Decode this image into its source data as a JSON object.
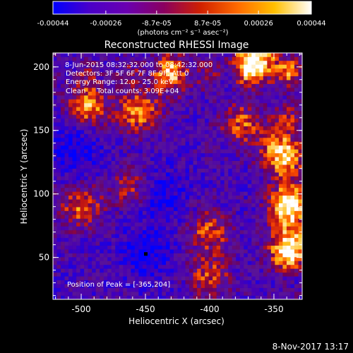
{
  "colorbar": {
    "tick_labels": [
      "-0.00044",
      "-0.00026",
      "-8.7e-05",
      "8.7e-05",
      "0.00026",
      "0.00044"
    ],
    "tick_values": [
      -0.00044,
      -0.00026,
      -8.7e-05,
      8.7e-05,
      0.00026,
      0.00044
    ],
    "range": [
      -0.00044,
      0.00044
    ],
    "unit_label": "(photons cm⁻² s⁻¹ asec⁻²)",
    "colors": [
      "#0000ff",
      "#4a00c8",
      "#6a00b0",
      "#8a0060",
      "#d02000",
      "#ff6a00",
      "#ffc000",
      "#ffffff"
    ]
  },
  "chart_data": {
    "type": "heatmap",
    "title": "Reconstructed RHESSI Image",
    "xlabel": "Heliocentric X (arcsec)",
    "ylabel": "Heliocentric Y (arcsec)",
    "xlim": [
      -522,
      -328
    ],
    "ylim": [
      17,
      211
    ],
    "x_ticks": [
      -500,
      -450,
      -400,
      -350
    ],
    "x_tick_labels": [
      "-500",
      "-450",
      "-400",
      "-350"
    ],
    "y_ticks": [
      50,
      100,
      150,
      200
    ],
    "y_tick_labels": [
      "50",
      "100",
      "150",
      "200"
    ],
    "grid": false,
    "colorscale": "blue-purple-red-yellow-white (RHESSI)",
    "value_range": [
      -0.00044,
      0.00044
    ],
    "bright_regions": [
      {
        "x": -365,
        "y": 204,
        "level": 1.0
      },
      {
        "x": -338,
        "y": 60,
        "level": 0.9
      },
      {
        "x": -338,
        "y": 95,
        "level": 0.85
      },
      {
        "x": -345,
        "y": 135,
        "level": 0.8
      },
      {
        "x": -495,
        "y": 170,
        "level": 0.7
      },
      {
        "x": -455,
        "y": 165,
        "level": 0.7
      },
      {
        "x": -500,
        "y": 90,
        "level": 0.6
      },
      {
        "x": -400,
        "y": 70,
        "level": 0.55
      },
      {
        "x": -430,
        "y": 195,
        "level": 0.55
      },
      {
        "x": -400,
        "y": 35,
        "level": 0.5
      },
      {
        "x": -460,
        "y": 105,
        "level": 0.45
      },
      {
        "x": -375,
        "y": 155,
        "level": 0.55
      }
    ],
    "dark_regions": [
      {
        "x": -450,
        "y": 53
      },
      {
        "x": -440,
        "y": 100
      },
      {
        "x": -505,
        "y": 135
      }
    ],
    "annotations": [
      "8-Jun-2015 08:32:32.000 to 08:42:32.000",
      "Detectors: 3F 5F 6F 7F 8F 9F, Att 0",
      "Energy Range: 12.0 - 25.0 keV",
      "Clean     Total counts: 3.09E+04",
      "Position of Peak = [-365,204]"
    ]
  },
  "footer": {
    "timestamp": "8-Nov-2017 13:17"
  }
}
